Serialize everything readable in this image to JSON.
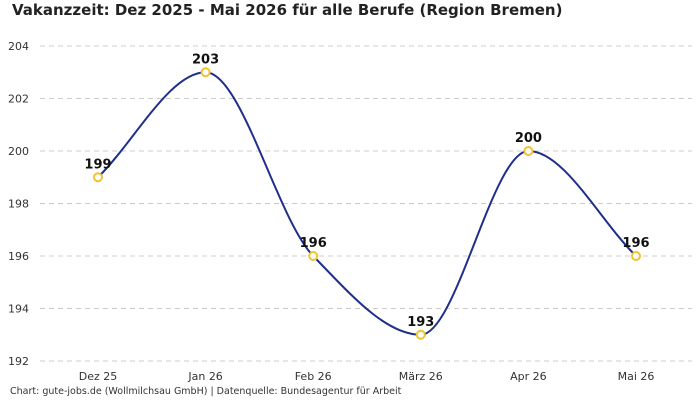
{
  "chart_data": {
    "type": "line",
    "title": "Vakanzzeit: Dez 2025 - Mai 2026 für alle Berufe (Region Bremen)",
    "categories": [
      "Dez 25",
      "Jan 26",
      "Feb 26",
      "März 26",
      "Apr 26",
      "Mai 26"
    ],
    "series": [
      {
        "values": [
          199,
          203,
          196,
          193,
          200,
          196
        ]
      }
    ],
    "ylim": [
      192,
      204
    ],
    "yticks": [
      192,
      194,
      196,
      198,
      200,
      202,
      204
    ],
    "grid": true,
    "line_color": "#1f2f8a",
    "marker_color": "#f2c230",
    "footer": "Chart: gute-jobs.de (Wollmilchsau GmbH) | Datenquelle: Bundesagentur für Arbeit"
  }
}
